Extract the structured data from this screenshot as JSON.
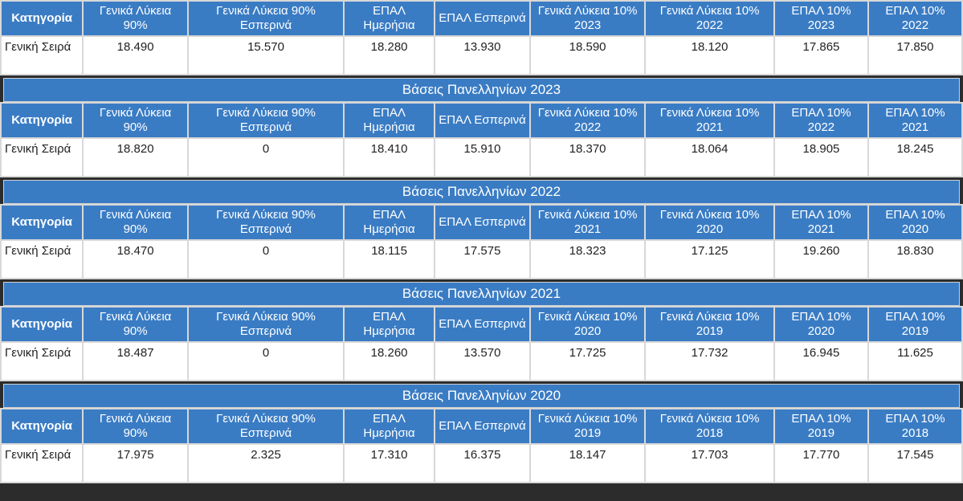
{
  "category_header": "Κατηγορία",
  "row_category": "Γενική Σειρά",
  "blocks": [
    {
      "title": "",
      "headers": [
        "Γενικά Λύκεια 90%",
        "Γενικά Λύκεια 90% Εσπερινά",
        "ΕΠΑΛ Ημερήσια",
        "ΕΠΑΛ Εσπερινά",
        "Γενικά Λύκεια 10% 2023",
        "Γενικά Λύκεια 10% 2022",
        "ΕΠΑΛ 10% 2023",
        "ΕΠΑΛ 10% 2022"
      ],
      "values": [
        "18.490",
        "15.570",
        "18.280",
        "13.930",
        "18.590",
        "18.120",
        "17.865",
        "17.850"
      ]
    },
    {
      "title": "Βάσεις Πανελληνίων 2023",
      "headers": [
        "Γενικά Λύκεια 90%",
        "Γενικά Λύκεια 90% Εσπερινά",
        "ΕΠΑΛ Ημερήσια",
        "ΕΠΑΛ Εσπερινά",
        "Γενικά Λύκεια 10% 2022",
        "Γενικά Λύκεια 10% 2021",
        "ΕΠΑΛ 10% 2022",
        "ΕΠΑΛ 10% 2021"
      ],
      "values": [
        "18.820",
        "0",
        "18.410",
        "15.910",
        "18.370",
        "18.064",
        "18.905",
        "18.245"
      ]
    },
    {
      "title": "Βάσεις Πανελληνίων 2022",
      "headers": [
        "Γενικά Λύκεια 90%",
        "Γενικά Λύκεια 90% Εσπερινά",
        "ΕΠΑΛ Ημερήσια",
        "ΕΠΑΛ Εσπερινά",
        "Γενικά Λύκεια 10% 2021",
        "Γενικά Λύκεια 10% 2020",
        "ΕΠΑΛ 10% 2021",
        "ΕΠΑΛ 10% 2020"
      ],
      "values": [
        "18.470",
        "0",
        "18.115",
        "17.575",
        "18.323",
        "17.125",
        "19.260",
        "18.830"
      ]
    },
    {
      "title": "Βάσεις Πανελληνίων 2021",
      "headers": [
        "Γενικά Λύκεια 90%",
        "Γενικά Λύκεια 90% Εσπερινά",
        "ΕΠΑΛ Ημερήσια",
        "ΕΠΑΛ Εσπερινά",
        "Γενικά Λύκεια 10% 2020",
        "Γενικά Λύκεια 10% 2019",
        "ΕΠΑΛ 10% 2020",
        "ΕΠΑΛ 10% 2019"
      ],
      "values": [
        "18.487",
        "0",
        "18.260",
        "13.570",
        "17.725",
        "17.732",
        "16.945",
        "11.625"
      ]
    },
    {
      "title": "Βάσεις Πανελληνίων 2020",
      "headers": [
        "Γενικά Λύκεια 90%",
        "Γενικά Λύκεια 90% Εσπερινά",
        "ΕΠΑΛ Ημερήσια",
        "ΕΠΑΛ Εσπερινά",
        "Γενικά Λύκεια 10% 2019",
        "Γενικά Λύκεια 10% 2018",
        "ΕΠΑΛ 10% 2019",
        "ΕΠΑΛ 10% 2018"
      ],
      "values": [
        "17.975",
        "2.325",
        "17.310",
        "16.375",
        "18.147",
        "17.703",
        "17.770",
        "17.545"
      ]
    }
  ]
}
